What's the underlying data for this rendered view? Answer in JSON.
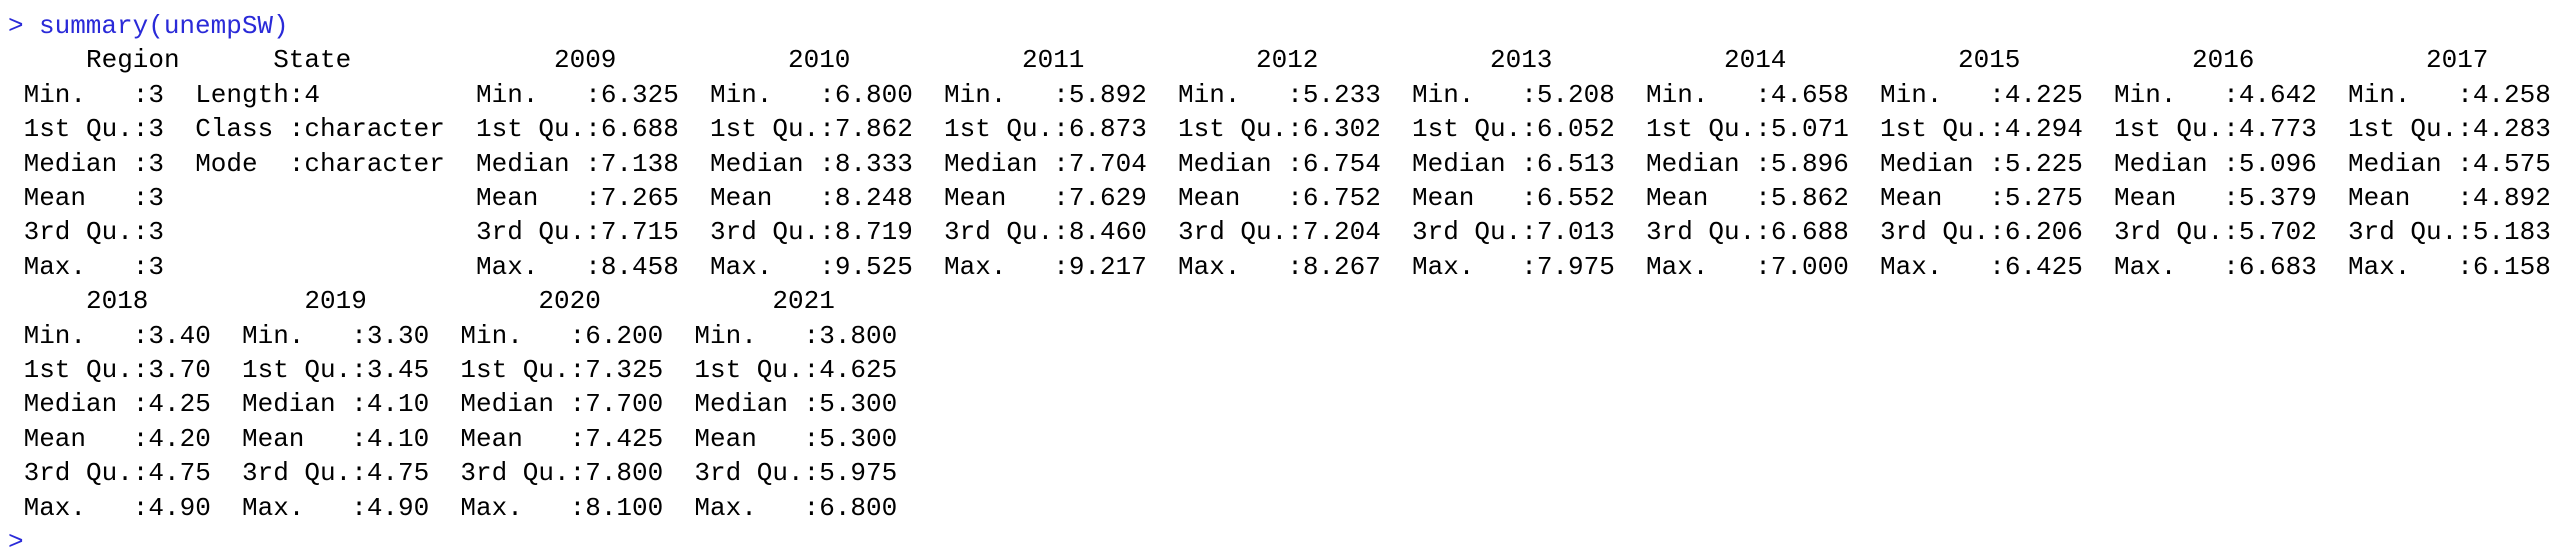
{
  "prompt": ">",
  "command": "summary(unempSW)",
  "blocks": [
    {
      "headers": [
        "Region",
        "State",
        "2009",
        "2010",
        "2011",
        "2012",
        "2013",
        "2014",
        "2015",
        "2016",
        "2017"
      ],
      "columns": [
        [
          "Min.   :3",
          "1st Qu.:3",
          "Median :3",
          "Mean   :3",
          "3rd Qu.:3",
          "Max.   :3"
        ],
        [
          "Length:4",
          "Class :character",
          "Mode  :character"
        ],
        [
          "Min.   :6.325",
          "1st Qu.:6.688",
          "Median :7.138",
          "Mean   :7.265",
          "3rd Qu.:7.715",
          "Max.   :8.458"
        ],
        [
          "Min.   :6.800",
          "1st Qu.:7.862",
          "Median :8.333",
          "Mean   :8.248",
          "3rd Qu.:8.719",
          "Max.   :9.525"
        ],
        [
          "Min.   :5.892",
          "1st Qu.:6.873",
          "Median :7.704",
          "Mean   :7.629",
          "3rd Qu.:8.460",
          "Max.   :9.217"
        ],
        [
          "Min.   :5.233",
          "1st Qu.:6.302",
          "Median :6.754",
          "Mean   :6.752",
          "3rd Qu.:7.204",
          "Max.   :8.267"
        ],
        [
          "Min.   :5.208",
          "1st Qu.:6.052",
          "Median :6.513",
          "Mean   :6.552",
          "3rd Qu.:7.013",
          "Max.   :7.975"
        ],
        [
          "Min.   :4.658",
          "1st Qu.:5.071",
          "Median :5.896",
          "Mean   :5.862",
          "3rd Qu.:6.688",
          "Max.   :7.000"
        ],
        [
          "Min.   :4.225",
          "1st Qu.:4.294",
          "Median :5.225",
          "Mean   :5.275",
          "3rd Qu.:6.206",
          "Max.   :6.425"
        ],
        [
          "Min.   :4.642",
          "1st Qu.:4.773",
          "Median :5.096",
          "Mean   :5.379",
          "3rd Qu.:5.702",
          "Max.   :6.683"
        ],
        [
          "Min.   :4.258",
          "1st Qu.:4.283",
          "Median :4.575",
          "Mean   :4.892",
          "3rd Qu.:5.183",
          "Max.   :6.158"
        ]
      ]
    },
    {
      "headers": [
        "2018",
        "2019",
        "2020",
        "2021"
      ],
      "columns": [
        [
          "Min.   :3.40",
          "1st Qu.:3.70",
          "Median :4.25",
          "Mean   :4.20",
          "3rd Qu.:4.75",
          "Max.   :4.90"
        ],
        [
          "Min.   :3.30",
          "1st Qu.:3.45",
          "Median :4.10",
          "Mean   :4.10",
          "3rd Qu.:4.75",
          "Max.   :4.90"
        ],
        [
          "Min.   :6.200",
          "1st Qu.:7.325",
          "Median :7.700",
          "Mean   :7.425",
          "3rd Qu.:7.800",
          "Max.   :8.100"
        ],
        [
          "Min.   :3.800",
          "1st Qu.:4.625",
          "Median :5.300",
          "Mean   :5.300",
          "3rd Qu.:5.975",
          "Max.   :6.800"
        ]
      ]
    }
  ],
  "final_prompt": ">"
}
